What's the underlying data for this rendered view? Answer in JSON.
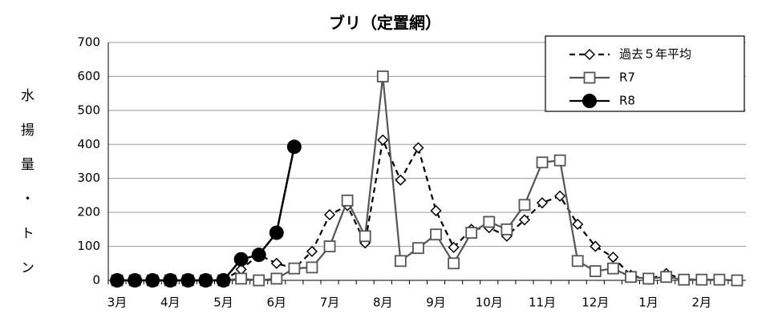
{
  "chart_data": {
    "type": "line",
    "title": "ブリ（定置網）",
    "y_label": "水揚量・トン",
    "categories": [
      "3月",
      null,
      null,
      "4月",
      null,
      null,
      "5月",
      null,
      null,
      "6月",
      null,
      null,
      "7月",
      null,
      null,
      "8月",
      null,
      null,
      "9月",
      null,
      null,
      "10月",
      null,
      null,
      "11月",
      null,
      null,
      "12月",
      null,
      null,
      "1月",
      null,
      null,
      "2月",
      null,
      null
    ],
    "series": [
      {
        "name": "過去５年平均",
        "color": "#000000",
        "marker": "diamond",
        "dash": true,
        "values": [
          0,
          0,
          0,
          0,
          0,
          0,
          0,
          32,
          75,
          50,
          35,
          85,
          193,
          220,
          110,
          413,
          295,
          390,
          205,
          97,
          150,
          155,
          130,
          178,
          228,
          248,
          165,
          100,
          68,
          15,
          3,
          20,
          3,
          2,
          1,
          0
        ]
      },
      {
        "name": "R7",
        "color": "#555555",
        "marker": "square",
        "dash": false,
        "values": [
          0,
          0,
          0,
          0,
          0,
          0,
          0,
          5,
          0,
          5,
          35,
          38,
          100,
          235,
          130,
          600,
          57,
          95,
          135,
          50,
          140,
          172,
          150,
          222,
          347,
          353,
          57,
          27,
          35,
          10,
          5,
          10,
          2,
          2,
          2,
          0
        ]
      },
      {
        "name": "R8",
        "color": "#000000",
        "marker": "circle",
        "dash": false,
        "values": [
          0,
          0,
          0,
          0,
          0,
          0,
          0,
          62,
          75,
          140,
          393,
          null,
          null,
          null,
          null,
          null,
          null,
          null,
          null,
          null,
          null,
          null,
          null,
          null,
          null,
          null,
          null,
          null,
          null,
          null,
          null,
          null,
          null,
          null,
          null,
          null
        ]
      }
    ],
    "ylim": [
      0,
      700
    ],
    "yticks": [
      0,
      100,
      200,
      300,
      400,
      500,
      600,
      700
    ],
    "grid": true,
    "legend": "top-right"
  }
}
